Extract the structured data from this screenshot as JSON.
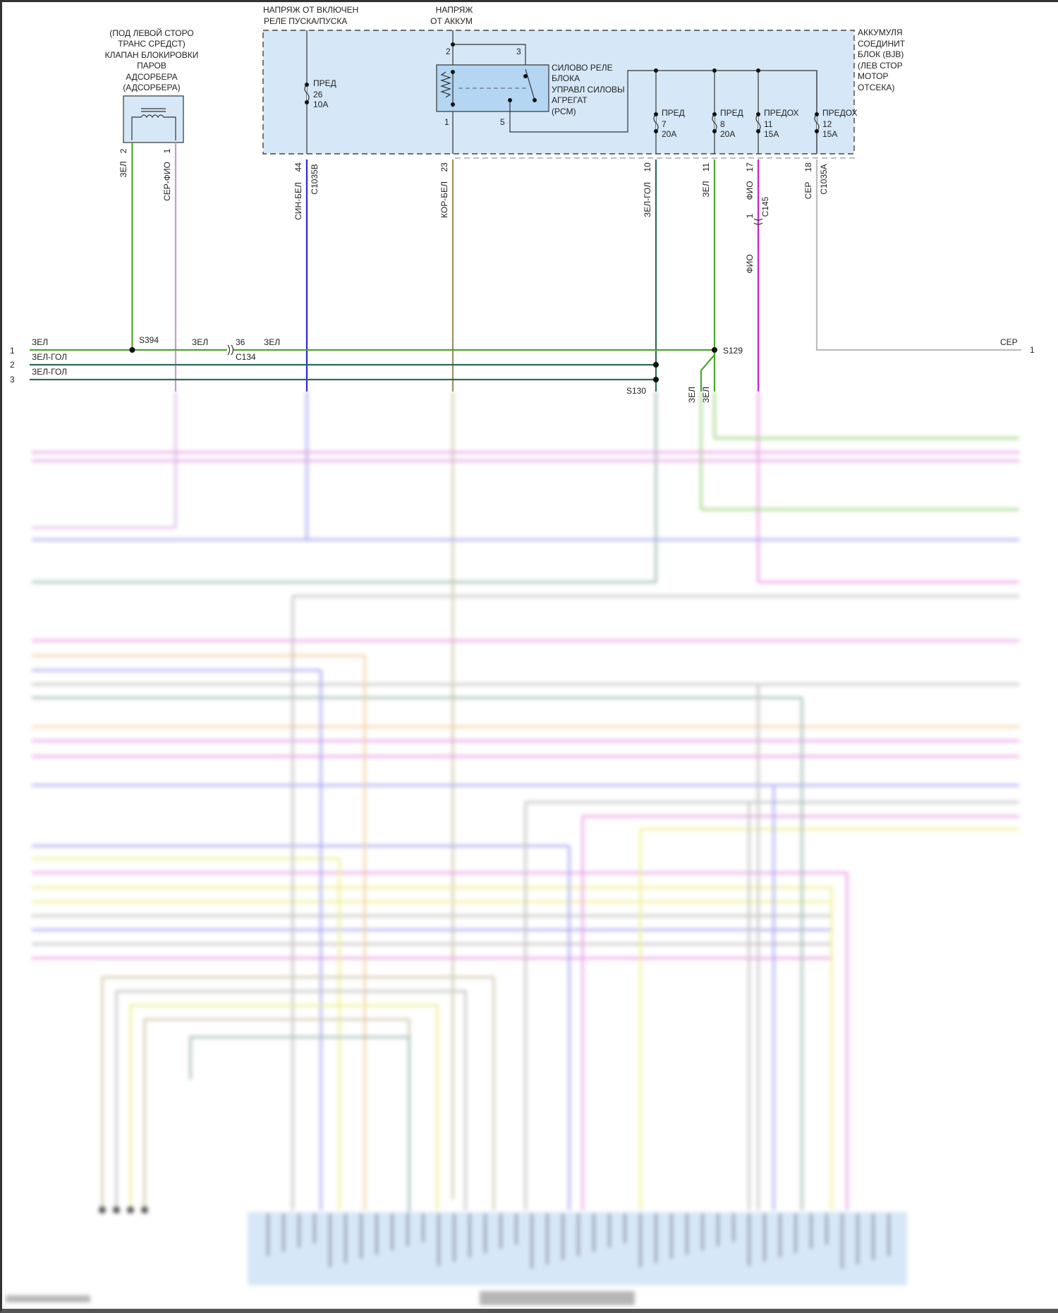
{
  "colors": {
    "module_fill": "#d6e8f8",
    "relay_fill": "#b4d6f2",
    "green": "#4aa82a",
    "green_blue": "#2f6a56",
    "gray_violet": "#c89ad6",
    "blue_white": "#2a2ad0",
    "brown_white": "#9a9060",
    "violet": "#d020d0",
    "gray": "#bdbdbd"
  },
  "top_labels": {
    "ignition_feed": [
      "НАПРЯЖ ОТ ВКЛЮЧЕН",
      "РЕЛЕ ПУСКА/ПУСКА"
    ],
    "battery_feed": [
      "НАПРЯЖ",
      "ОТ АККУМ"
    ]
  },
  "canister_valve": {
    "label": [
      "(ПОД ЛЕВОЙ СТОРО",
      "ТРАНС СРЕДСТ)",
      "КЛАПАН БЛОКИРОВКИ",
      "ПАРОВ",
      "АДСОРБЕРА",
      "(АДСОРБЕРА)"
    ],
    "pins": [
      {
        "pin": "2",
        "wire": "ЗЕЛ"
      },
      {
        "pin": "1",
        "wire": "СЕР-ФИО"
      }
    ]
  },
  "bjb": {
    "label": [
      "АККУМУЛЯ",
      "СОЕДИНИТ",
      "БЛОК (BJB)",
      "(ЛЕВ СТОР",
      "МОТОР",
      "ОТСЕКА)"
    ],
    "relay_label": [
      "СИЛОВО РЕЛЕ",
      "БЛОКА",
      "УПРАВЛ СИЛОВЫ",
      "АГРЕГАТ",
      "(PCM)"
    ],
    "relay_pins": [
      "2",
      "3",
      "1",
      "5"
    ],
    "fuses": [
      {
        "name": "ПРЕД",
        "num": "26",
        "rating": "10A"
      },
      {
        "name": "ПРЕД",
        "num": "7",
        "rating": "20A"
      },
      {
        "name": "ПРЕД",
        "num": "8",
        "rating": "20A"
      },
      {
        "name": "ПРЕДОХ",
        "num": "11",
        "rating": "15A"
      },
      {
        "name": "ПРЕДОХ",
        "num": "12",
        "rating": "15A"
      }
    ],
    "outputs": [
      {
        "pin": "44",
        "wire": "СИН-БЕЛ",
        "connector": "C1035B"
      },
      {
        "pin": "23",
        "wire": "КОР-БЕЛ"
      },
      {
        "pin": "10",
        "wire": "ЗЕЛ-ГОЛ"
      },
      {
        "pin": "11",
        "wire": "ЗЕЛ"
      },
      {
        "pin": "17",
        "wire": "ФИО",
        "inline_connector": "C145",
        "inline_pin": "1",
        "wire_after": "ФИО"
      },
      {
        "pin": "18",
        "wire": "СЕР",
        "connector": "C1035A"
      }
    ]
  },
  "harness_rows": [
    {
      "num": "1",
      "wire": "ЗЕЛ"
    },
    {
      "num": "2",
      "wire": "ЗЕЛ-ГОЛ"
    },
    {
      "num": "3",
      "wire": "ЗЕЛ-ГОЛ"
    }
  ],
  "splices": {
    "s394": "S394",
    "s129": "S129",
    "s130": "S130"
  },
  "inline": {
    "c134_pin": "36",
    "c134": "C134",
    "wire_left": "ЗЕЛ",
    "wire_right": "ЗЕЛ"
  },
  "right_exit": {
    "wire": "СЕР",
    "num": "1"
  },
  "s129_branch_labels": [
    "ЗЕЛ",
    "ЗЕЛ"
  ]
}
